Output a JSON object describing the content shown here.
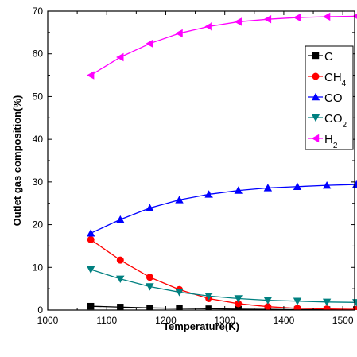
{
  "chart_data": {
    "type": "line",
    "xlabel": "Temperature(K)",
    "ylabel": "Outlet gas composition(%)",
    "xlim": [
      1000,
      1520
    ],
    "ylim": [
      0,
      70
    ],
    "xticks": [
      "1000",
      "1100",
      "1200",
      "1300",
      "1400",
      "1500"
    ],
    "yticks": [
      "0",
      "10",
      "20",
      "30",
      "40",
      "50",
      "60",
      "70"
    ],
    "x": [
      1073,
      1123,
      1173,
      1223,
      1273,
      1323,
      1373,
      1423,
      1473,
      1523
    ],
    "legend_position": "top-right",
    "grid": false,
    "series": [
      {
        "name": "C",
        "name_main": "C",
        "name_sub": "",
        "color": "#000000",
        "marker": "square",
        "values": [
          0.9,
          0.7,
          0.5,
          0.4,
          0.3,
          0.2,
          0.15,
          0.1,
          0.1,
          0.1
        ]
      },
      {
        "name": "CH4",
        "name_main": "CH",
        "name_sub": "4",
        "color": "#ff0000",
        "marker": "circle",
        "values": [
          16.5,
          11.7,
          7.7,
          4.8,
          2.7,
          1.5,
          0.8,
          0.4,
          0.25,
          0.15
        ]
      },
      {
        "name": "CO",
        "name_main": "CO",
        "name_sub": "",
        "color": "#0000ff",
        "marker": "triangle-up",
        "values": [
          18.0,
          21.2,
          23.9,
          25.8,
          27.1,
          28.0,
          28.6,
          28.9,
          29.2,
          29.4
        ]
      },
      {
        "name": "CO2",
        "name_main": "CO",
        "name_sub": "2",
        "color": "#008080",
        "marker": "triangle-down",
        "values": [
          9.5,
          7.3,
          5.5,
          4.2,
          3.3,
          2.7,
          2.3,
          2.1,
          1.9,
          1.8
        ]
      },
      {
        "name": "H2",
        "name_main": "H",
        "name_sub": "2",
        "color": "#ff00ff",
        "marker": "triangle-left",
        "values": [
          55.0,
          59.2,
          62.4,
          64.8,
          66.4,
          67.5,
          68.1,
          68.5,
          68.7,
          68.8
        ]
      }
    ]
  }
}
